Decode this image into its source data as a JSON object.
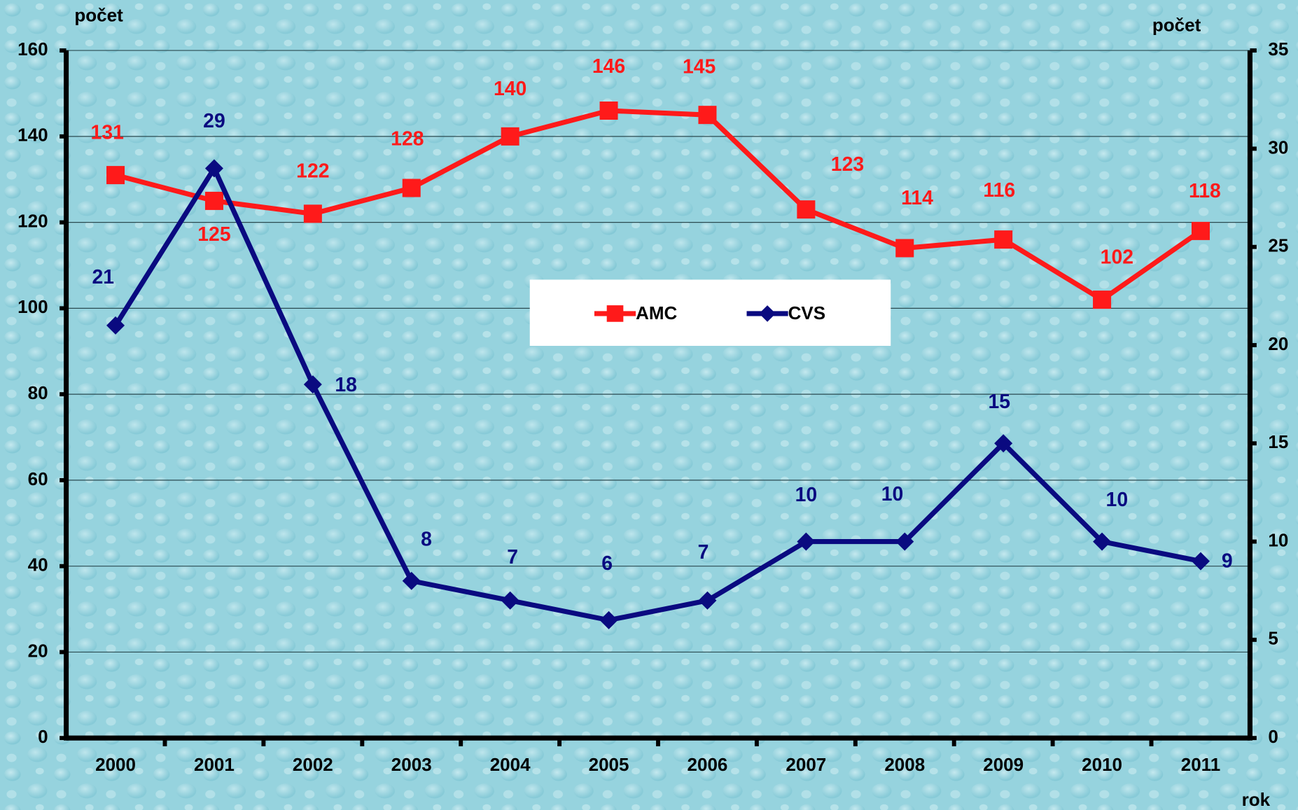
{
  "chart_data": {
    "type": "line",
    "y_label": "počet",
    "y2_label": "počet",
    "x_label": "rok",
    "categories": [
      "2000",
      "2001",
      "2002",
      "2003",
      "2004",
      "2005",
      "2006",
      "2007",
      "2008",
      "2009",
      "2010",
      "2011"
    ],
    "series": [
      {
        "name": "AMC",
        "color": "#ff1a1a",
        "marker": "square",
        "values": [
          131,
          125,
          122,
          128,
          140,
          146,
          145,
          123,
          114,
          116,
          102,
          118
        ]
      },
      {
        "name": "CVS",
        "color": "#0a0a80",
        "marker": "diamond",
        "axis": "y2",
        "values": [
          21,
          29,
          18,
          8,
          7,
          6,
          7,
          10,
          10,
          15,
          10,
          9
        ]
      }
    ],
    "ylim": [
      0,
      160
    ],
    "yticks": [
      0,
      20,
      40,
      60,
      80,
      100,
      120,
      140,
      160
    ],
    "y2lim": [
      0,
      35
    ],
    "y2ticks": [
      0,
      5,
      10,
      15,
      20,
      25,
      30,
      35
    ],
    "grid": true,
    "legend": "center"
  }
}
